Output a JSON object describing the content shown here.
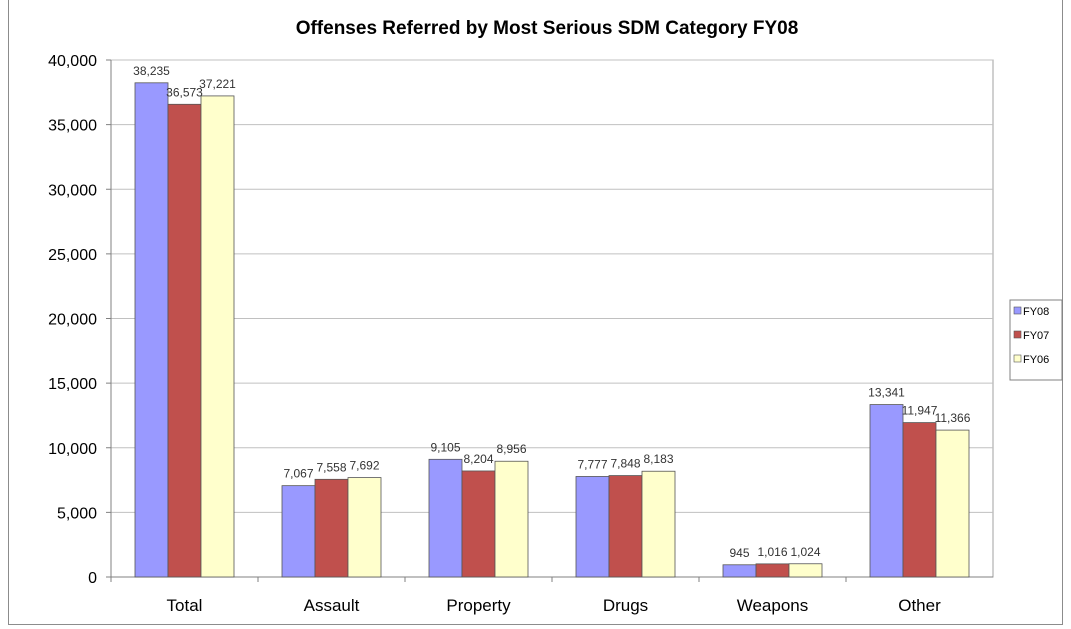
{
  "chart_data": {
    "type": "bar",
    "title": "Offenses Referred by Most Serious SDM Category FY08",
    "categories": [
      "Total",
      "Assault",
      "Property",
      "Drugs",
      "Weapons",
      "Other"
    ],
    "series": [
      {
        "name": "FY08",
        "color": "#9999ff",
        "values": [
          38235,
          7067,
          9105,
          7777,
          945,
          13341
        ],
        "labels": [
          "38,235",
          "7,067",
          "9,105",
          "7,777",
          "945",
          "13,341"
        ]
      },
      {
        "name": "FY07",
        "color": "#c0504d",
        "values": [
          36573,
          7558,
          8204,
          7848,
          1016,
          11947
        ],
        "labels": [
          "36,573",
          "7,558",
          "8,204",
          "7,848",
          "1,016",
          "11,947"
        ]
      },
      {
        "name": "FY06",
        "color": "#ffffcc",
        "values": [
          37221,
          7692,
          8956,
          8183,
          1024,
          11366
        ],
        "labels": [
          "37,221",
          "7,692",
          "8,956",
          "8,183",
          "1,024",
          "11,366"
        ]
      }
    ],
    "ylim": [
      0,
      40000
    ],
    "yticks": [
      0,
      5000,
      10000,
      15000,
      20000,
      25000,
      30000,
      35000,
      40000
    ],
    "ytick_labels": [
      "0",
      "5,000",
      "10,000",
      "15,000",
      "20,000",
      "25,000",
      "30,000",
      "35,000",
      "40,000"
    ],
    "grid": true,
    "legend_position": "right"
  }
}
